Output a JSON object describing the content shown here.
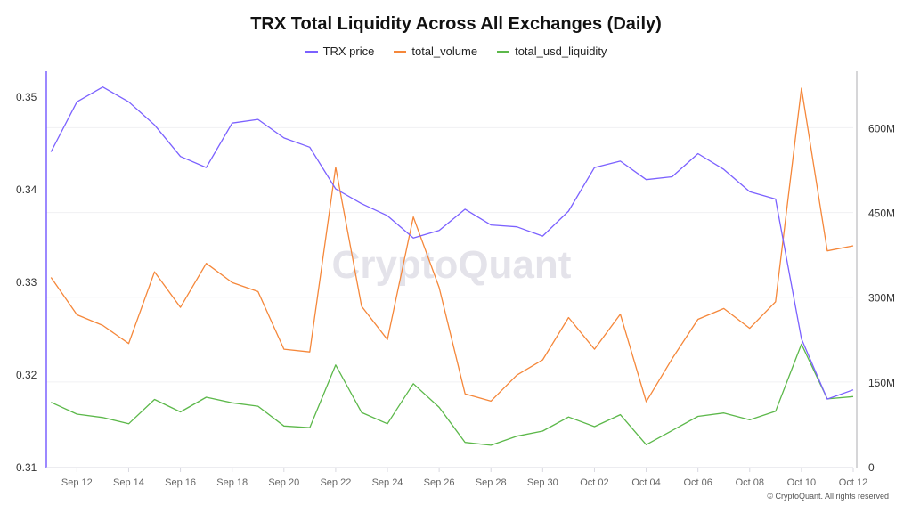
{
  "chart_data": {
    "type": "line",
    "title": "TRX Total Liquidity Across All Exchanges (Daily)",
    "legend_position": "top",
    "grid": true,
    "watermark": "CryptoQuant",
    "copyright": "© CryptoQuant. All rights reserved",
    "x": [
      "Sep 11",
      "Sep 12",
      "Sep 13",
      "Sep 14",
      "Sep 15",
      "Sep 16",
      "Sep 17",
      "Sep 18",
      "Sep 19",
      "Sep 20",
      "Sep 21",
      "Sep 22",
      "Sep 23",
      "Sep 24",
      "Sep 25",
      "Sep 26",
      "Sep 27",
      "Sep 28",
      "Sep 29",
      "Sep 30",
      "Oct 01",
      "Oct 02",
      "Oct 03",
      "Oct 04",
      "Oct 05",
      "Oct 06",
      "Oct 07",
      "Oct 08",
      "Oct 09",
      "Oct 10",
      "Oct 11",
      "Oct 12"
    ],
    "x_tick_labels": [
      "Sep 12",
      "Sep 14",
      "Sep 16",
      "Sep 18",
      "Sep 20",
      "Sep 22",
      "Sep 24",
      "Sep 26",
      "Sep 28",
      "Sep 30",
      "Oct 02",
      "Oct 04",
      "Oct 06",
      "Oct 08",
      "Oct 10",
      "Oct 12"
    ],
    "y_left": {
      "ylim": [
        0.31,
        0.3527
      ],
      "ticks": [
        0.31,
        0.32,
        0.33,
        0.34,
        0.35
      ],
      "tick_labels": [
        "0.31",
        "0.32",
        "0.33",
        "0.34",
        "0.35"
      ]
    },
    "y_right": {
      "ylim": [
        0,
        700000000
      ],
      "ticks": [
        0,
        150000000,
        300000000,
        450000000,
        600000000
      ],
      "tick_labels": [
        "0",
        "150M",
        "300M",
        "450M",
        "600M"
      ]
    },
    "series": [
      {
        "name": "TRX price",
        "axis": "left",
        "color": "#7b61ff",
        "values": [
          0.344,
          0.3494,
          0.351,
          0.3494,
          0.3469,
          0.3435,
          0.3423,
          0.3471,
          0.3475,
          0.3455,
          0.3445,
          0.34,
          0.3384,
          0.3371,
          0.3347,
          0.3355,
          0.3378,
          0.3361,
          0.3359,
          0.3349,
          0.3376,
          0.3423,
          0.343,
          0.341,
          0.3413,
          0.3438,
          0.3421,
          0.3397,
          0.3389,
          0.3238,
          0.3173,
          0.3183
        ]
      },
      {
        "name": "total_volume",
        "axis": "right",
        "color": "#f5873a",
        "values": [
          335000000,
          269000000,
          250000000,
          218000000,
          345000000,
          282000000,
          360000000,
          326000000,
          310000000,
          208000000,
          203000000,
          530000000,
          284000000,
          225000000,
          442000000,
          317000000,
          129000000,
          116000000,
          162000000,
          189000000,
          264000000,
          208000000,
          270000000,
          115000000,
          191000000,
          261000000,
          280000000,
          245000000,
          292000000,
          670000000,
          382000000,
          391000000
        ]
      },
      {
        "name": "total_usd_liquidity",
        "axis": "right",
        "color": "#5cb84a",
        "values": [
          114000000,
          93000000,
          87000000,
          76000000,
          119000000,
          97000000,
          123000000,
          113000000,
          107000000,
          72000000,
          69000000,
          180000000,
          96000000,
          76000000,
          147000000,
          105000000,
          43000000,
          38000000,
          54000000,
          63000000,
          88000000,
          71000000,
          92000000,
          39000000,
          64000000,
          89000000,
          95000000,
          83000000,
          98000000,
          217000000,
          120000000,
          124000000
        ]
      }
    ]
  }
}
